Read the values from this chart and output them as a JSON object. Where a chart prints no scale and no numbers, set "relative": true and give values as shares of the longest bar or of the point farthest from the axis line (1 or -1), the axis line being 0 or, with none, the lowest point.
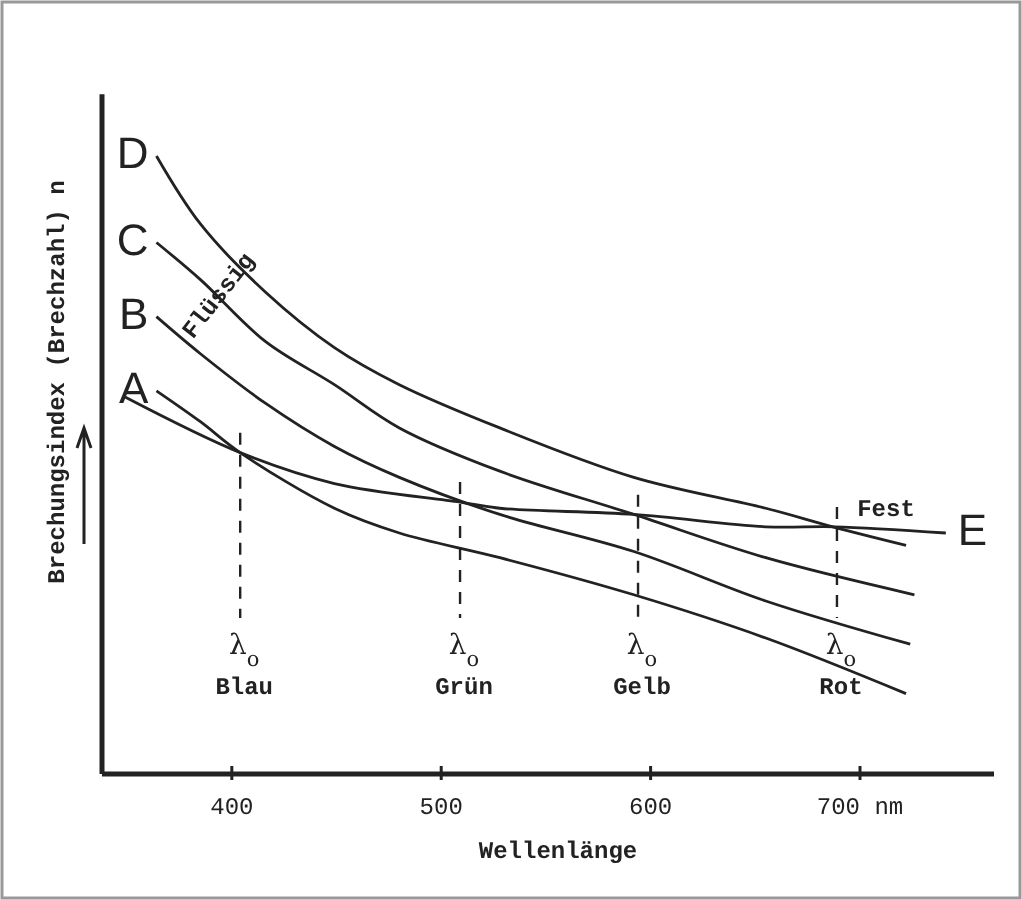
{
  "chart_data": {
    "type": "line",
    "relative": true,
    "xlabel": "Wellenlänge",
    "ylabel": "Brechungsindex (Brechzahl) n",
    "xlim": [
      338,
      764
    ],
    "xticks": [
      400,
      500,
      600,
      {
        "value": 700,
        "label": "700 nm"
      }
    ],
    "grid": false,
    "marker": "none",
    "line_style": "solid",
    "series": [
      {
        "name": "A",
        "color": "#222222",
        "x": [
          364,
          385,
          404,
          449,
          480,
          528,
          592,
          655,
          722
        ],
        "values": [
          0.62,
          0.57,
          0.52,
          0.43,
          0.39,
          0.35,
          0.29,
          0.22,
          0.13
        ]
      },
      {
        "name": "B",
        "color": "#222222",
        "x": [
          364,
          385,
          416,
          449,
          480,
          528,
          592,
          655,
          724
        ],
        "values": [
          0.74,
          0.68,
          0.6,
          0.53,
          0.48,
          0.42,
          0.36,
          0.28,
          0.21
        ]
      },
      {
        "name": "C",
        "color": "#222222",
        "x": [
          364,
          385,
          416,
          449,
          480,
          528,
          592,
          655,
          726
        ],
        "values": [
          0.86,
          0.8,
          0.7,
          0.63,
          0.56,
          0.49,
          0.42,
          0.35,
          0.29
        ]
      },
      {
        "name": "D",
        "color": "#222222",
        "x": [
          364,
          385,
          416,
          449,
          480,
          528,
          592,
          655,
          687,
          722
        ],
        "values": [
          1,
          0.89,
          0.78,
          0.69,
          0.63,
          0.56,
          0.48,
          0.43,
          0.4,
          0.37
        ]
      },
      {
        "name": "E",
        "color": "#222222",
        "x": [
          349,
          404,
          449,
          509,
          528,
          592,
          655,
          688,
          741
        ],
        "values": [
          0.61,
          0.52,
          0.47,
          0.44,
          0.43,
          0.42,
          0.4,
          0.4,
          0.39
        ]
      }
    ],
    "ref_lines": [
      {
        "axis": "x",
        "value": 404,
        "label": "λ$_{o}$ Blau",
        "line_style": "dashed"
      },
      {
        "axis": "x",
        "value": 509,
        "label": "λ$_{o}$ Grün",
        "line_style": "dashed"
      },
      {
        "axis": "x",
        "value": 594,
        "label": "λ$_{o}$ Gelb",
        "line_style": "dashed"
      },
      {
        "axis": "x",
        "value": 689,
        "label": "λ$_{o}$ Rot",
        "line_style": "dashed"
      }
    ],
    "annotations": [
      "Flüssig",
      "Fest"
    ]
  }
}
